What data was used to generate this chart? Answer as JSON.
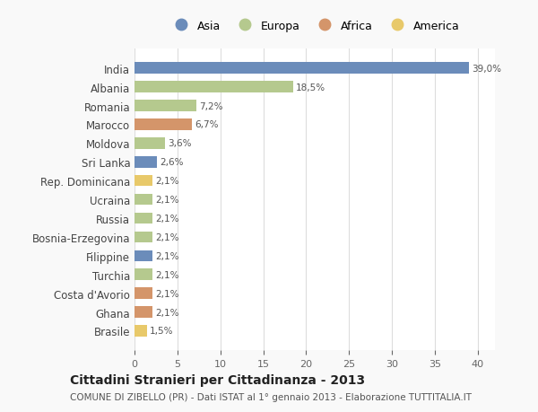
{
  "countries": [
    "India",
    "Albania",
    "Romania",
    "Marocco",
    "Moldova",
    "Sri Lanka",
    "Rep. Dominicana",
    "Ucraina",
    "Russia",
    "Bosnia-Erzegovina",
    "Filippine",
    "Turchia",
    "Costa d'Avorio",
    "Ghana",
    "Brasile"
  ],
  "values": [
    39.0,
    18.5,
    7.2,
    6.7,
    3.6,
    2.6,
    2.1,
    2.1,
    2.1,
    2.1,
    2.1,
    2.1,
    2.1,
    2.1,
    1.5
  ],
  "labels": [
    "39,0%",
    "18,5%",
    "7,2%",
    "6,7%",
    "3,6%",
    "2,6%",
    "2,1%",
    "2,1%",
    "2,1%",
    "2,1%",
    "2,1%",
    "2,1%",
    "2,1%",
    "2,1%",
    "1,5%"
  ],
  "colors": [
    "#6b8cba",
    "#b5c98e",
    "#b5c98e",
    "#d4956a",
    "#b5c98e",
    "#6b8cba",
    "#e8c96a",
    "#b5c98e",
    "#b5c98e",
    "#b5c98e",
    "#6b8cba",
    "#b5c98e",
    "#d4956a",
    "#d4956a",
    "#e8c96a"
  ],
  "legend_names": [
    "Asia",
    "Europa",
    "Africa",
    "America"
  ],
  "legend_colors": [
    "#6b8cba",
    "#b5c98e",
    "#d4956a",
    "#e8c96a"
  ],
  "title": "Cittadini Stranieri per Cittadinanza - 2013",
  "subtitle": "COMUNE DI ZIBELLO (PR) - Dati ISTAT al 1° gennaio 2013 - Elaborazione TUTTITALIA.IT",
  "xlim": [
    0,
    42
  ],
  "xticks": [
    0,
    5,
    10,
    15,
    20,
    25,
    30,
    35,
    40
  ],
  "background_color": "#f9f9f9",
  "plot_bg_color": "#ffffff",
  "grid_color": "#dddddd"
}
